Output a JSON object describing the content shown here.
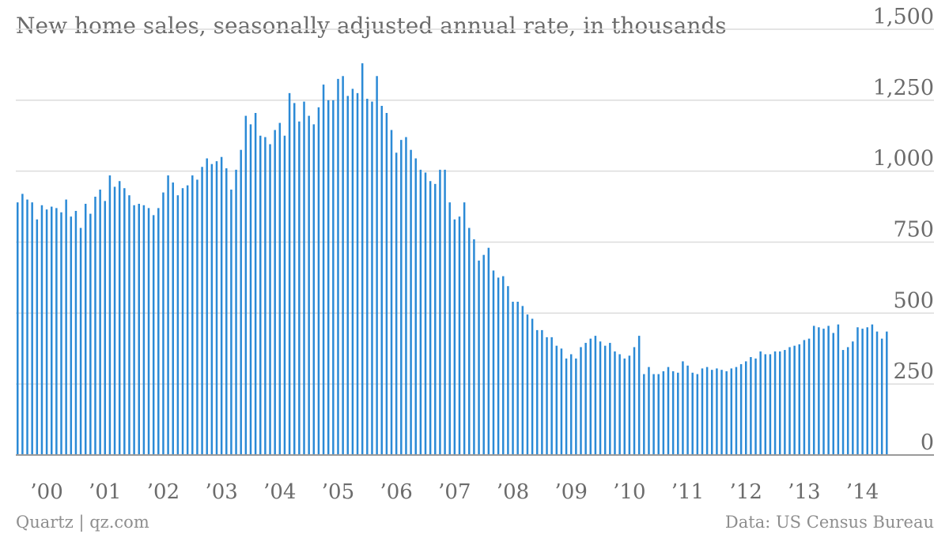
{
  "footer": {
    "source_left": "Quartz | qz.com",
    "source_right": "Data: US Census Bureau"
  },
  "colors": {
    "bar": "#2b8ad6",
    "grid": "#dcdcdc",
    "text": "#6b6b6b"
  },
  "chart_data": {
    "type": "bar",
    "title": "New home sales, seasonally adjusted annual rate, in thousands",
    "xlabel": "",
    "ylabel": "",
    "ylim": [
      0,
      1500
    ],
    "grid": true,
    "y_ticks": [
      {
        "value": 0,
        "label": "0"
      },
      {
        "value": 250,
        "label": "250"
      },
      {
        "value": 500,
        "label": "500"
      },
      {
        "value": 750,
        "label": "750"
      },
      {
        "value": 1000,
        "label": "1,000"
      },
      {
        "value": 1250,
        "label": "1,250"
      },
      {
        "value": 1500,
        "label": "1,500"
      }
    ],
    "x_ticks": [
      {
        "index": 6,
        "label": "’00"
      },
      {
        "index": 18,
        "label": "’01"
      },
      {
        "index": 30,
        "label": "’02"
      },
      {
        "index": 42,
        "label": "’03"
      },
      {
        "index": 54,
        "label": "’04"
      },
      {
        "index": 66,
        "label": "’05"
      },
      {
        "index": 78,
        "label": "’06"
      },
      {
        "index": 90,
        "label": "’07"
      },
      {
        "index": 102,
        "label": "’08"
      },
      {
        "index": 114,
        "label": "’09"
      },
      {
        "index": 126,
        "label": "’10"
      },
      {
        "index": 138,
        "label": "’11"
      },
      {
        "index": 150,
        "label": "’12"
      },
      {
        "index": 162,
        "label": "’13"
      },
      {
        "index": 174,
        "label": "’14"
      }
    ],
    "period": "Monthly, Jan 2000 to Apr 2014",
    "values": [
      890,
      920,
      900,
      890,
      830,
      880,
      865,
      875,
      870,
      855,
      900,
      840,
      860,
      800,
      885,
      850,
      910,
      935,
      895,
      985,
      945,
      965,
      940,
      915,
      880,
      885,
      880,
      870,
      845,
      870,
      925,
      985,
      960,
      915,
      940,
      950,
      985,
      970,
      1015,
      1045,
      1025,
      1035,
      1050,
      1010,
      935,
      1005,
      1075,
      1195,
      1165,
      1205,
      1125,
      1120,
      1095,
      1145,
      1170,
      1125,
      1275,
      1240,
      1175,
      1245,
      1195,
      1165,
      1225,
      1305,
      1250,
      1250,
      1325,
      1335,
      1265,
      1290,
      1275,
      1380,
      1255,
      1245,
      1335,
      1230,
      1205,
      1145,
      1065,
      1110,
      1120,
      1075,
      1045,
      1005,
      995,
      965,
      955,
      1005,
      1005,
      890,
      830,
      840,
      890,
      800,
      760,
      685,
      705,
      730,
      650,
      625,
      630,
      595,
      540,
      540,
      525,
      495,
      480,
      440,
      440,
      415,
      415,
      385,
      375,
      340,
      355,
      340,
      380,
      395,
      410,
      420,
      400,
      385,
      395,
      365,
      355,
      340,
      350,
      380,
      420,
      285,
      310,
      285,
      285,
      295,
      310,
      295,
      290,
      330,
      315,
      290,
      285,
      305,
      310,
      300,
      305,
      300,
      295,
      305,
      310,
      320,
      330,
      345,
      340,
      365,
      355,
      355,
      365,
      365,
      370,
      380,
      385,
      390,
      405,
      410,
      455,
      450,
      445,
      455,
      430,
      460,
      370,
      380,
      400,
      450,
      445,
      450,
      460,
      435,
      410,
      435
    ]
  }
}
